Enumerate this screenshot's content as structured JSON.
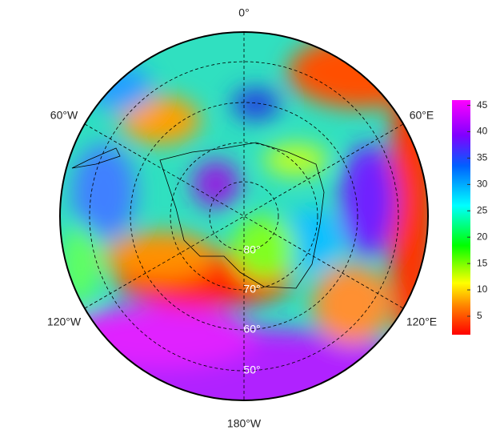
{
  "map": {
    "longitude_labels": [
      "0°",
      "60°W",
      "60°E",
      "120°W",
      "120°E",
      "180°W"
    ],
    "latitude_labels": [
      "50°",
      "60°",
      "70°",
      "80°"
    ],
    "colorbar": {
      "range": [
        1.5,
        46
      ],
      "ticks": [
        5,
        10,
        15,
        20,
        25,
        30,
        35,
        40,
        45
      ]
    }
  }
}
